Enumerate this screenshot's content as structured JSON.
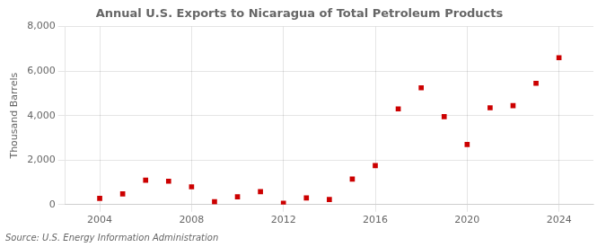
{
  "chart_data": {
    "type": "scatter",
    "title": "Annual U.S. Exports to Nicaragua of Total Petroleum Products",
    "ylabel": "Thousand Barrels",
    "source": "Source: U.S. Energy Information Administration",
    "x": [
      2004,
      2005,
      2006,
      2007,
      2008,
      2009,
      2010,
      2011,
      2012,
      2013,
      2014,
      2015,
      2016,
      2017,
      2018,
      2019,
      2020,
      2021,
      2022,
      2023,
      2024
    ],
    "values": [
      280,
      480,
      1100,
      1050,
      800,
      130,
      350,
      580,
      60,
      300,
      230,
      1150,
      1750,
      4300,
      5250,
      3950,
      2700,
      4350,
      4450,
      5450,
      6600
    ],
    "color": "#cc0000",
    "marker": "square",
    "xlim": [
      2002.5,
      2025.5
    ],
    "xticks": [
      2004,
      2008,
      2012,
      2016,
      2020,
      2024
    ],
    "ylim": [
      0,
      8000
    ],
    "yticks": [
      0,
      {
        "value": 2000,
        "label": "2,000"
      },
      {
        "value": 4000,
        "label": "4,000"
      },
      {
        "value": 6000,
        "label": "6,000"
      },
      {
        "value": 8000,
        "label": "8,000"
      }
    ],
    "grid": true
  }
}
